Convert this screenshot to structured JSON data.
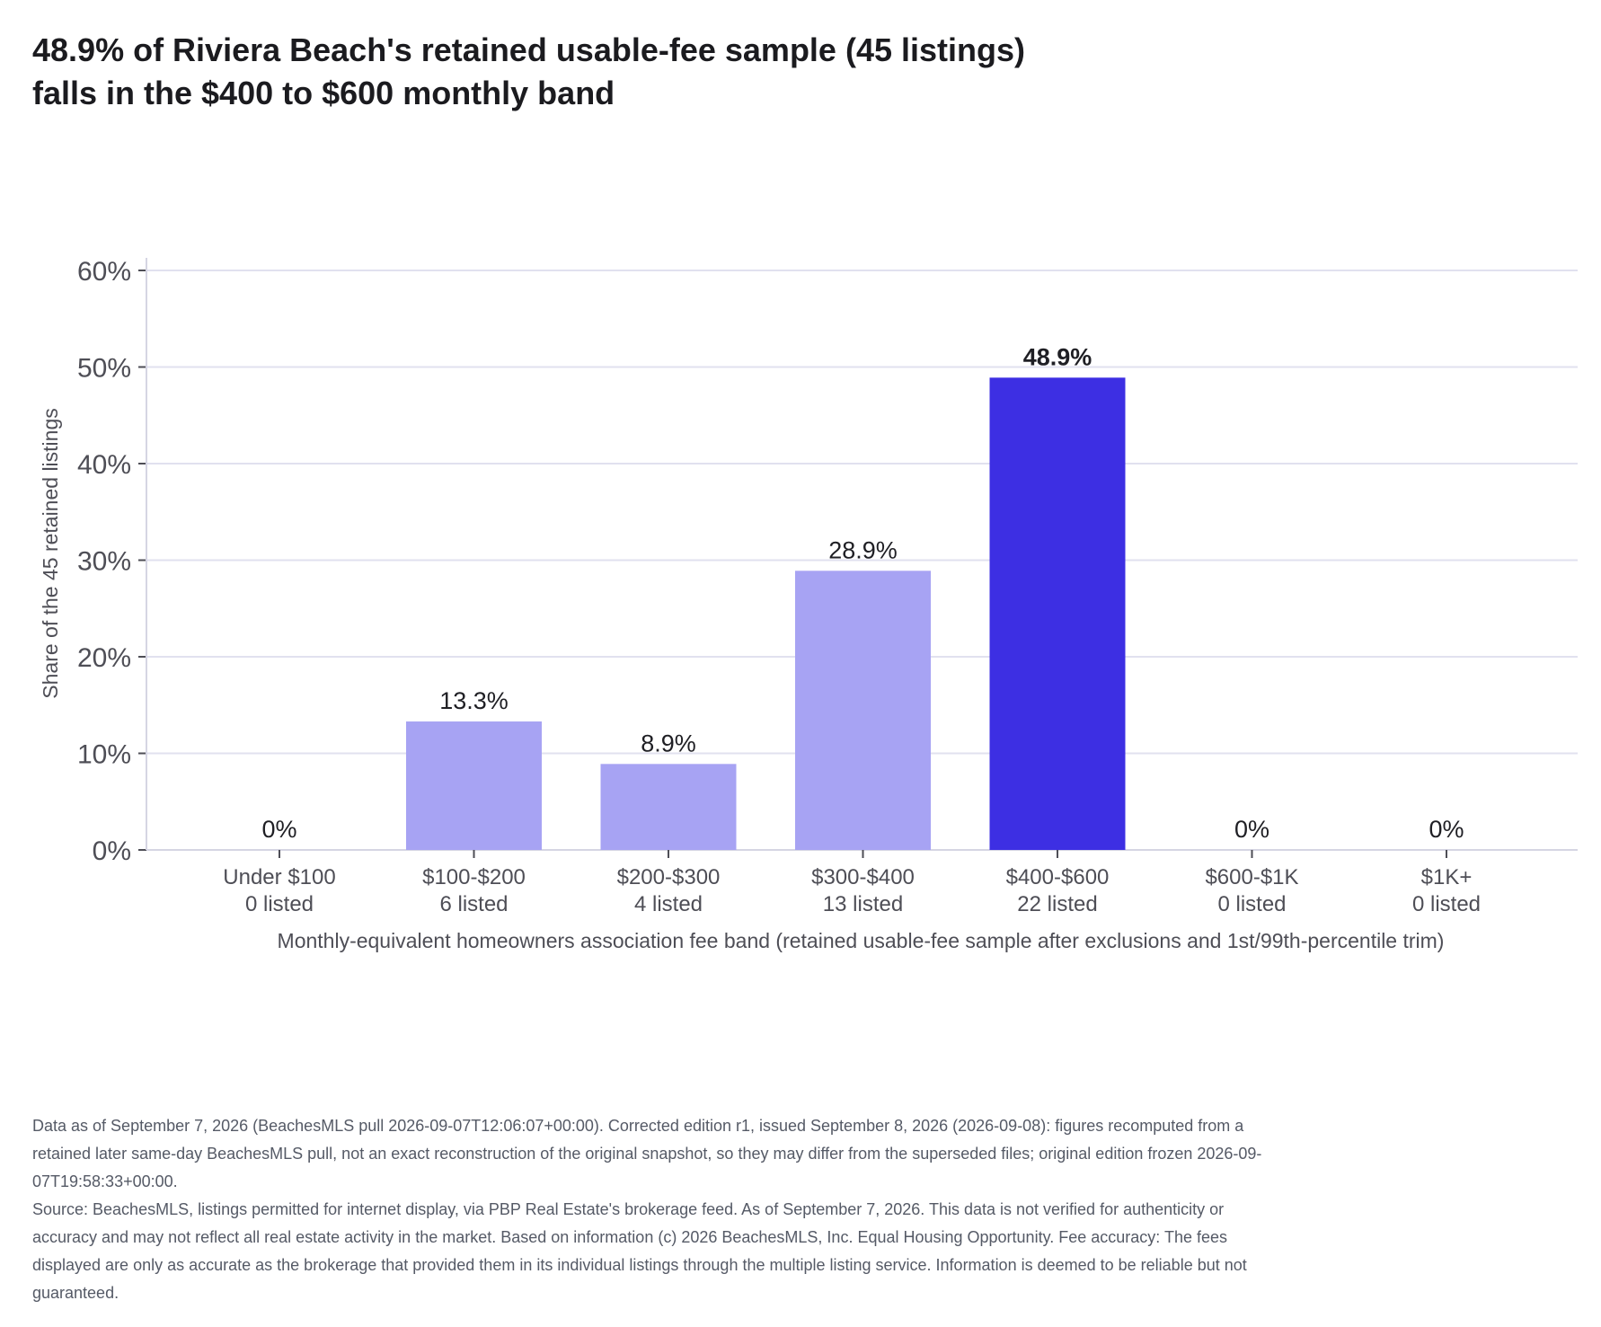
{
  "title": {
    "line1": "48.9% of Riviera Beach's retained usable-fee sample (45 listings)",
    "line2": "falls in the $400 to $600 monthly band"
  },
  "colors": {
    "bar_default": "#a7a3f3",
    "bar_highlight": "#3d2fe3",
    "grid": "#e1e1ef",
    "axis": "#d5d5e3",
    "tick_text": "#4e4e56",
    "label_text": "#1f1f24"
  },
  "chart_data": {
    "type": "bar",
    "categories": [
      "Under $100",
      "$100-$200",
      "$200-$300",
      "$300-$400",
      "$400-$600",
      "$600-$1K",
      "$1K+"
    ],
    "counts": [
      "0 listed",
      "6 listed",
      "4 listed",
      "13 listed",
      "22 listed",
      "0 listed",
      "0 listed"
    ],
    "values": [
      0,
      13.3,
      8.9,
      28.9,
      48.9,
      0,
      0
    ],
    "value_labels": [
      "0%",
      "13.3%",
      "8.9%",
      "28.9%",
      "48.9%",
      "0%",
      "0%"
    ],
    "highlight_index": 4,
    "xlabel": "Monthly-equivalent homeowners association fee band (retained usable-fee sample after exclusions and 1st/99th-percentile trim)",
    "ylabel": "Share of the 45 retained listings",
    "ylim": [
      0,
      60
    ],
    "yticks": [
      0,
      10,
      20,
      30,
      40,
      50,
      60
    ],
    "ytick_labels": [
      "0%",
      "10%",
      "20%",
      "30%",
      "40%",
      "50%",
      "60%"
    ],
    "grid": true,
    "legend": "none"
  },
  "footnote": {
    "edition": "Data as of September 7, 2026 (BeachesMLS pull 2026-09-07T12:06:07+00:00). Corrected edition r1, issued September 8, 2026 (2026-09-08): figures recomputed from a retained later same-day BeachesMLS pull, not an exact reconstruction of the original snapshot, so they may differ from the superseded files; original edition frozen 2026-09-07T19:58:33+00:00.",
    "source": "Source: BeachesMLS, listings permitted for internet display, via PBP Real Estate's brokerage feed. As of September 7, 2026. This data is not verified for authenticity or accuracy and may not reflect all real estate activity in the market. Based on information (c) 2026 BeachesMLS, Inc. Equal Housing Opportunity. Fee accuracy: The fees displayed are only as accurate as the brokerage that provided them in its individual listings through the multiple listing service. Information is deemed to be reliable but not guaranteed."
  }
}
